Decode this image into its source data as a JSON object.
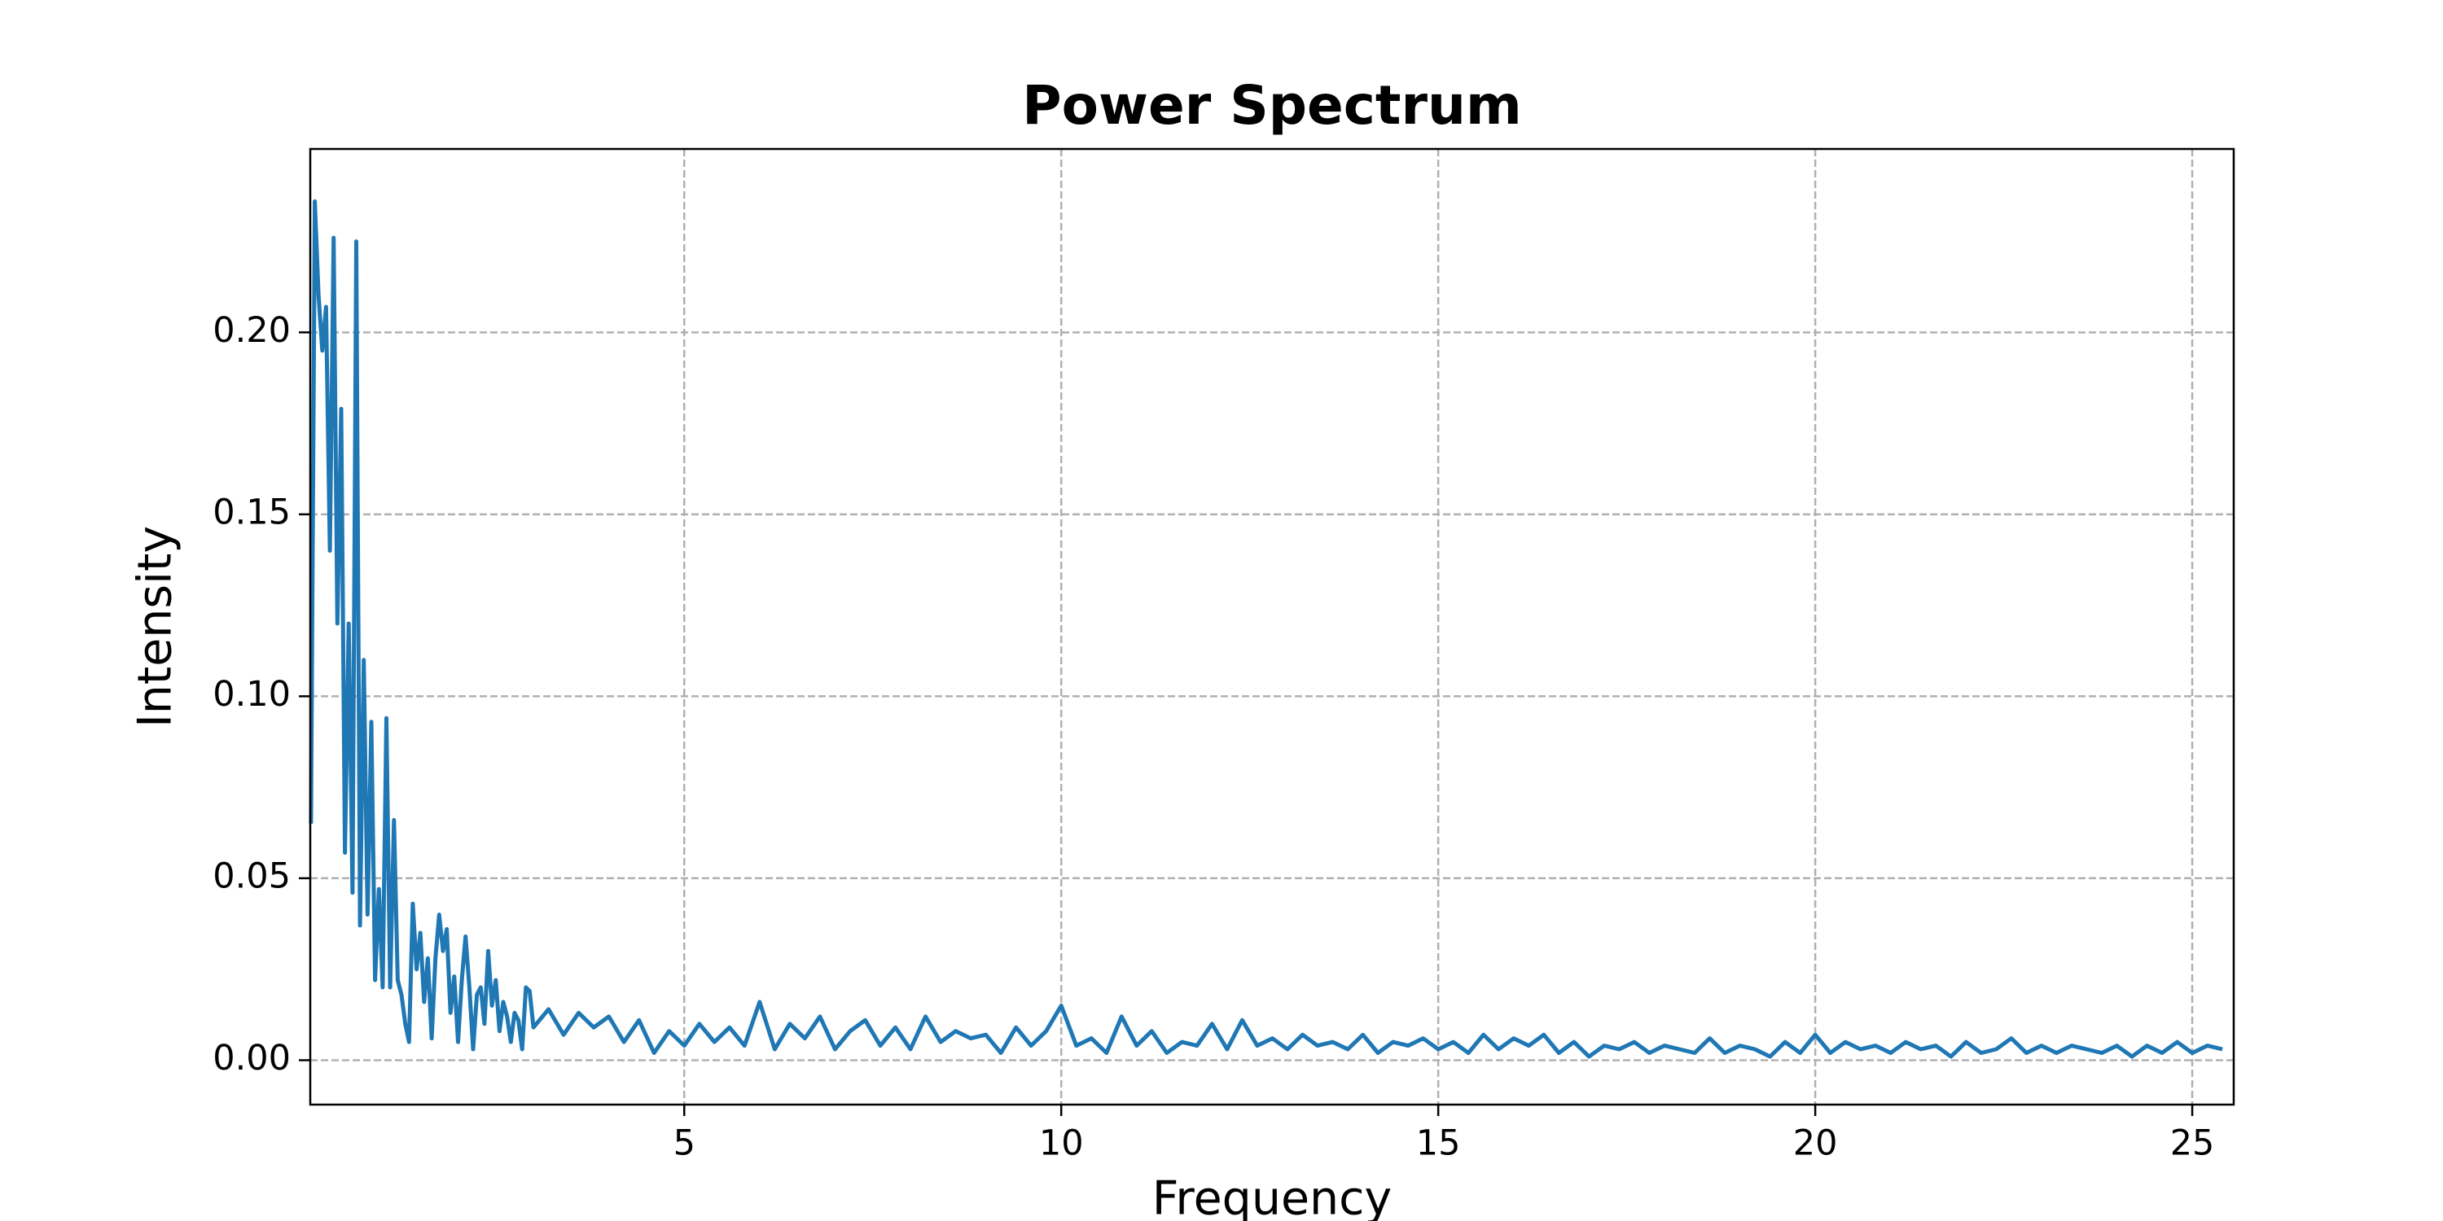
{
  "chart_data": {
    "type": "line",
    "title": "Power Spectrum",
    "xlabel": "Frequency",
    "ylabel": "Intensity",
    "x": [
      0.05,
      0.1,
      0.15,
      0.2,
      0.25,
      0.3,
      0.35,
      0.4,
      0.45,
      0.5,
      0.55,
      0.6,
      0.65,
      0.7,
      0.75,
      0.8,
      0.85,
      0.9,
      0.95,
      1.0,
      1.05,
      1.1,
      1.15,
      1.2,
      1.25,
      1.3,
      1.35,
      1.4,
      1.45,
      1.5,
      1.55,
      1.6,
      1.65,
      1.7,
      1.75,
      1.8,
      1.85,
      1.9,
      1.95,
      2.0,
      2.05,
      2.1,
      2.15,
      2.2,
      2.25,
      2.3,
      2.35,
      2.4,
      2.45,
      2.5,
      2.55,
      2.6,
      2.65,
      2.7,
      2.75,
      2.8,
      2.85,
      2.9,
      2.95,
      3.0,
      3.2,
      3.4,
      3.6,
      3.8,
      4.0,
      4.2,
      4.4,
      4.6,
      4.8,
      5.0,
      5.2,
      5.4,
      5.6,
      5.8,
      6.0,
      6.2,
      6.4,
      6.6,
      6.8,
      7.0,
      7.2,
      7.4,
      7.6,
      7.8,
      8.0,
      8.2,
      8.4,
      8.6,
      8.8,
      9.0,
      9.2,
      9.4,
      9.6,
      9.8,
      10.0,
      10.2,
      10.4,
      10.6,
      10.8,
      11.0,
      11.2,
      11.4,
      11.6,
      11.8,
      12.0,
      12.2,
      12.4,
      12.6,
      12.8,
      13.0,
      13.2,
      13.4,
      13.6,
      13.8,
      14.0,
      14.2,
      14.4,
      14.6,
      14.8,
      15.0,
      15.2,
      15.4,
      15.6,
      15.8,
      16.0,
      16.2,
      16.4,
      16.6,
      16.8,
      17.0,
      17.2,
      17.4,
      17.6,
      17.8,
      18.0,
      18.2,
      18.4,
      18.6,
      18.8,
      19.0,
      19.2,
      19.4,
      19.6,
      19.8,
      20.0,
      20.2,
      20.4,
      20.6,
      20.8,
      21.0,
      21.2,
      21.4,
      21.6,
      21.8,
      22.0,
      22.2,
      22.4,
      22.6,
      22.8,
      23.0,
      23.2,
      23.4,
      23.6,
      23.8,
      24.0,
      24.2,
      24.4,
      24.6,
      24.8,
      25.0,
      25.2,
      25.4
    ],
    "values": [
      0.065,
      0.236,
      0.21,
      0.195,
      0.207,
      0.14,
      0.226,
      0.12,
      0.179,
      0.057,
      0.12,
      0.046,
      0.225,
      0.037,
      0.11,
      0.04,
      0.093,
      0.022,
      0.047,
      0.02,
      0.094,
      0.02,
      0.066,
      0.022,
      0.018,
      0.01,
      0.005,
      0.043,
      0.025,
      0.035,
      0.016,
      0.028,
      0.006,
      0.028,
      0.04,
      0.03,
      0.036,
      0.013,
      0.023,
      0.005,
      0.022,
      0.034,
      0.02,
      0.003,
      0.018,
      0.02,
      0.01,
      0.03,
      0.015,
      0.022,
      0.008,
      0.016,
      0.012,
      0.005,
      0.013,
      0.011,
      0.003,
      0.02,
      0.019,
      0.009,
      0.014,
      0.007,
      0.013,
      0.009,
      0.012,
      0.005,
      0.011,
      0.002,
      0.008,
      0.004,
      0.01,
      0.005,
      0.009,
      0.004,
      0.016,
      0.003,
      0.01,
      0.006,
      0.012,
      0.003,
      0.008,
      0.011,
      0.004,
      0.009,
      0.003,
      0.012,
      0.005,
      0.008,
      0.006,
      0.007,
      0.002,
      0.009,
      0.004,
      0.008,
      0.015,
      0.004,
      0.006,
      0.002,
      0.012,
      0.004,
      0.008,
      0.002,
      0.005,
      0.004,
      0.01,
      0.003,
      0.011,
      0.004,
      0.006,
      0.003,
      0.007,
      0.004,
      0.005,
      0.003,
      0.007,
      0.002,
      0.005,
      0.004,
      0.006,
      0.003,
      0.005,
      0.002,
      0.007,
      0.003,
      0.006,
      0.004,
      0.007,
      0.002,
      0.005,
      0.001,
      0.004,
      0.003,
      0.005,
      0.002,
      0.004,
      0.003,
      0.002,
      0.006,
      0.002,
      0.004,
      0.003,
      0.001,
      0.005,
      0.002,
      0.007,
      0.002,
      0.005,
      0.003,
      0.004,
      0.002,
      0.005,
      0.003,
      0.004,
      0.001,
      0.005,
      0.002,
      0.003,
      0.006,
      0.002,
      0.004,
      0.002,
      0.004,
      0.003,
      0.002,
      0.004,
      0.001,
      0.004,
      0.002,
      0.005,
      0.002,
      0.004,
      0.003
    ],
    "color": "#1f77b4",
    "xlim": [
      0.04,
      25.55
    ],
    "ylim": [
      -0.0122,
      0.2504
    ],
    "xticks": [
      5,
      10,
      15,
      20,
      25
    ],
    "yticks": [
      {
        "value": 0,
        "label": "0.00"
      },
      0.05,
      {
        "value": 0.1,
        "label": "0.10"
      },
      0.15,
      {
        "value": 0.2,
        "label": "0.20"
      }
    ],
    "grid": true
  }
}
